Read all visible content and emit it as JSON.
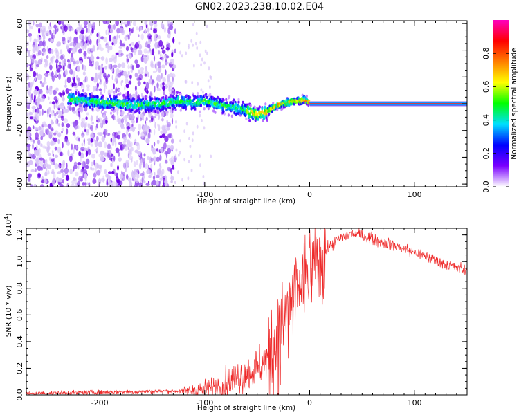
{
  "title": "GN02.2023.238.10.02.E04",
  "colors": {
    "snr_line": "#ee2a2a",
    "frame": "#000000",
    "scatter_faint": "#d8c4f8",
    "scatter_mid": "#9b5cf0",
    "scatter_strong": "#6a00e6"
  },
  "chart_data": [
    {
      "id": "spectrogram",
      "type": "heatmap",
      "xlabel": "Height of straight line (km)",
      "ylabel": "Frequency (Hz)",
      "xlim": [
        -270,
        150
      ],
      "ylim": [
        -62,
        62
      ],
      "xticks": [
        -200,
        -100,
        0,
        100
      ],
      "yticks": [
        -60,
        -40,
        -20,
        0,
        20,
        40,
        60
      ],
      "colorbar": {
        "label": "Normalized spectral amplitude",
        "range": [
          0,
          1
        ],
        "ticks": [
          "0.0",
          "0.2",
          "0.4",
          "0.6",
          "0.8"
        ],
        "tick_values": [
          0.0,
          0.2,
          0.4,
          0.6,
          0.8
        ],
        "colormap": [
          "#ffffff",
          "#7a00ff",
          "#0000ff",
          "#00dfff",
          "#00ff00",
          "#ffff00",
          "#ff7f00",
          "#ff0000",
          "#ff00bf"
        ]
      },
      "noise_region_x": [
        -270,
        -128
      ],
      "ridge": {
        "x": [
          -230,
          -200,
          -180,
          -160,
          -140,
          -125,
          -110,
          -100,
          -90,
          -80,
          -70,
          -60,
          -55,
          -50,
          -45,
          -40,
          -35,
          -30,
          -25,
          -20,
          -15,
          -10,
          -5,
          0,
          20,
          50,
          100,
          150
        ],
        "y": [
          4,
          1,
          0,
          -1,
          0,
          2,
          1,
          2,
          0,
          -2,
          -3,
          -5,
          -7,
          -8,
          -7,
          -6,
          -3,
          -1,
          0,
          1,
          2,
          2,
          3,
          1,
          0,
          0,
          0,
          0
        ]
      }
    },
    {
      "id": "snr",
      "type": "line",
      "xlabel": "Height of straight line (km)",
      "ylabel": "SNR (10 * v/v)",
      "y_multiplier": "(x10^4)",
      "xlim": [
        -270,
        150
      ],
      "ylim": [
        0,
        1.25
      ],
      "xticks": [
        -200,
        -100,
        0,
        100
      ],
      "yticks": [
        0.0,
        0.2,
        0.4,
        0.6,
        0.8,
        1.0,
        1.2
      ],
      "ytick_labels": [
        "0.0",
        "0.2",
        "0.4",
        "0.6",
        "0.8",
        "1.0",
        "1.2"
      ],
      "series": [
        {
          "x": [
            -270,
            -240,
            -200,
            -160,
            -120,
            -100,
            -90,
            -80,
            -70,
            -60,
            -50,
            -45,
            -40,
            -35,
            -30,
            -25,
            -20,
            -15,
            -10,
            -5,
            0,
            10,
            20,
            30,
            40,
            50,
            60,
            80,
            100,
            120,
            150
          ],
          "y": [
            0.01,
            0.015,
            0.02,
            0.025,
            0.03,
            0.04,
            0.06,
            0.09,
            0.13,
            0.16,
            0.2,
            0.24,
            0.28,
            0.34,
            0.45,
            0.55,
            0.65,
            0.74,
            0.82,
            0.88,
            0.95,
            1.03,
            1.12,
            1.18,
            1.21,
            1.2,
            1.17,
            1.12,
            1.07,
            1.01,
            0.93
          ]
        }
      ]
    }
  ]
}
